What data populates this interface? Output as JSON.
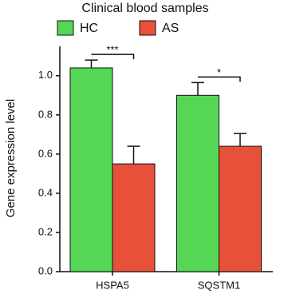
{
  "chart_data": {
    "type": "bar",
    "title": "Clinical blood samples",
    "y_label": "Gene expression level",
    "categories": [
      "HSPA5",
      "SQSTM1"
    ],
    "series": [
      {
        "name": "HC",
        "color": "#55d655",
        "values": [
          1.04,
          0.9
        ],
        "errors": [
          0.04,
          0.065
        ]
      },
      {
        "name": "AS",
        "color": "#e8503a",
        "values": [
          0.55,
          0.64
        ],
        "errors": [
          0.09,
          0.065
        ]
      }
    ],
    "significance": [
      "***",
      "*"
    ],
    "ylim": [
      0,
      1.15
    ],
    "yticks": [
      {
        "value": 0,
        "label": "0.0"
      },
      {
        "value": 0.2,
        "label": "0.2"
      },
      {
        "value": 0.4,
        "label": "0.4"
      },
      {
        "value": 0.6,
        "label": "0.6"
      },
      {
        "value": 0.8,
        "label": "0.8"
      },
      {
        "value": 1.0,
        "label": "1.0"
      }
    ]
  }
}
